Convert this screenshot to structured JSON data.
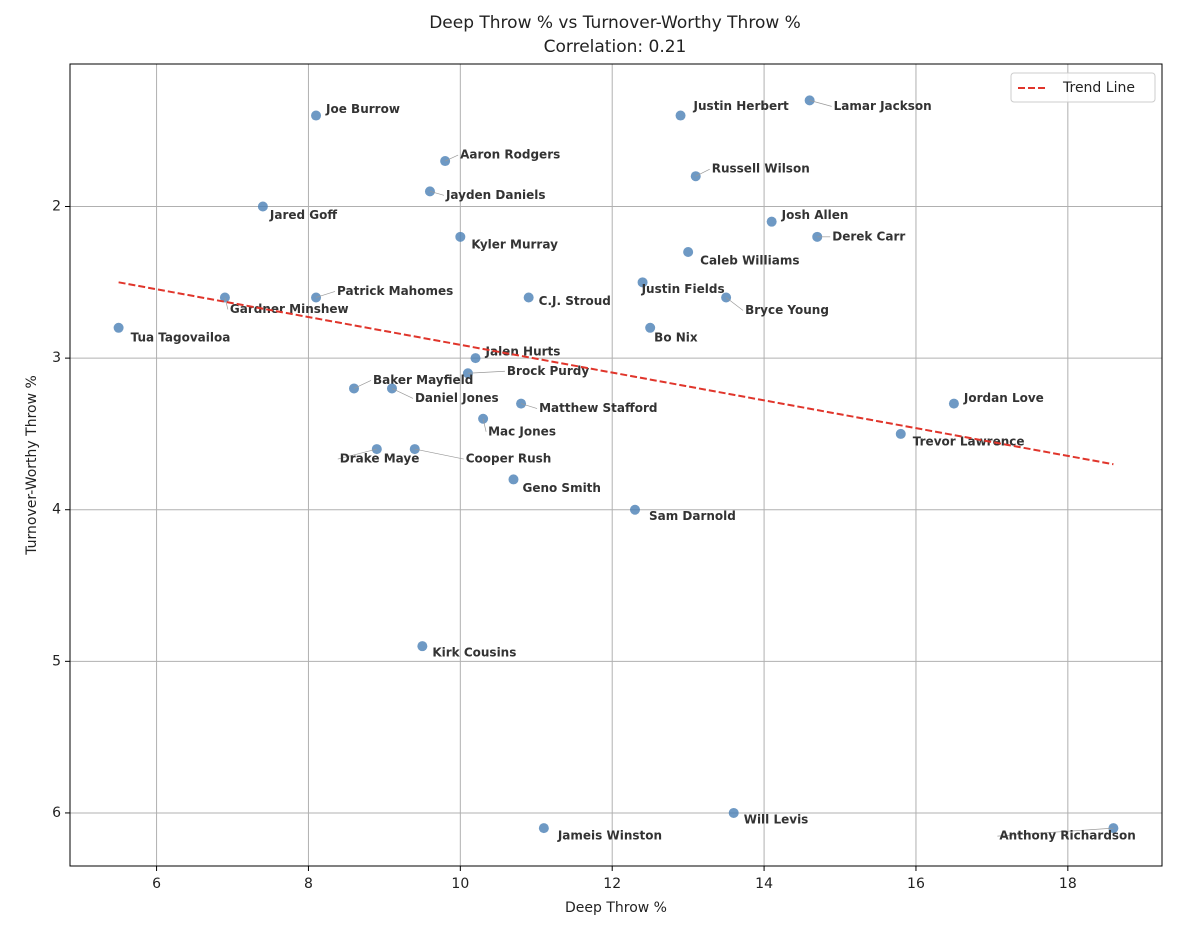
{
  "chart_data": {
    "type": "scatter",
    "title": "Deep Throw % vs Turnover-Worthy Throw %",
    "subtitle": "Correlation: 0.21",
    "x_label": "Deep Throw %",
    "y_label": "Turnover-Worthy Throw %",
    "xlim": [
      4.86,
      19.24
    ],
    "ylim": [
      1.06,
      6.35
    ],
    "y_inverted": true,
    "xticks": [
      6,
      8,
      10,
      12,
      14,
      16,
      18
    ],
    "yticks": [
      2,
      3,
      4,
      5,
      6
    ],
    "grid": true,
    "legend": "upper right",
    "color": "#4a7fb5",
    "labels": [
      "Joe Burrow",
      "Lamar Jackson",
      "Justin Herbert",
      "Aaron Rodgers",
      "Russell Wilson",
      "Jayden Daniels",
      "Jared Goff",
      "Josh Allen",
      "Derek Carr",
      "Kyler Murray",
      "Caleb Williams",
      "Justin Fields",
      "Patrick Mahomes",
      "Gardner Minshew",
      "C.J. Stroud",
      "Bryce Young",
      "Tua Tagovailoa",
      "Bo Nix",
      "Jalen Hurts",
      "Brock Purdy",
      "Baker Mayfield",
      "Daniel Jones",
      "Matthew Stafford",
      "Jordan Love",
      "Mac Jones",
      "Trevor Lawrence",
      "Drake Maye",
      "Cooper Rush",
      "Geno Smith",
      "Sam Darnold",
      "Kirk Cousins",
      "Will Levis",
      "Jameis Winston",
      "Anthony Richardson"
    ],
    "x": [
      8.1,
      14.6,
      12.9,
      9.8,
      13.1,
      9.6,
      7.4,
      14.1,
      14.7,
      10.0,
      13.0,
      12.4,
      8.1,
      6.9,
      10.9,
      13.5,
      5.5,
      12.5,
      10.2,
      10.1,
      8.6,
      9.1,
      10.8,
      16.5,
      10.3,
      15.8,
      8.9,
      9.4,
      10.7,
      12.3,
      9.5,
      13.6,
      11.1,
      18.6
    ],
    "values": [
      1.4,
      1.3,
      1.4,
      1.7,
      1.8,
      1.9,
      2.0,
      2.1,
      2.2,
      2.2,
      2.3,
      2.5,
      2.6,
      2.6,
      2.6,
      2.6,
      2.8,
      2.8,
      3.0,
      3.1,
      3.2,
      3.2,
      3.3,
      3.3,
      3.4,
      3.5,
      3.6,
      3.6,
      3.8,
      4.0,
      4.9,
      6.0,
      6.1,
      6.1
    ],
    "trend": {
      "name": "Trend Line",
      "color": "#e0352b",
      "x": [
        5.5,
        18.6
      ],
      "values": [
        2.5,
        3.7
      ]
    }
  }
}
